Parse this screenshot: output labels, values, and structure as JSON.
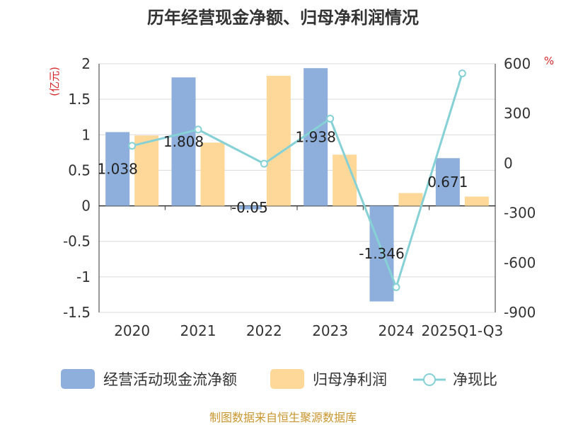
{
  "chart_data": {
    "type": "bar",
    "title": "历年经营现金净额、归母净利润情况",
    "categories": [
      "2020",
      "2021",
      "2022",
      "2023",
      "2024",
      "2025Q1-Q3"
    ],
    "series": [
      {
        "name": "经营活动现金流净额",
        "type": "bar",
        "axis": "left",
        "color": "#8eaedb",
        "values": [
          1.038,
          1.808,
          -0.05,
          1.938,
          -1.346,
          0.671
        ],
        "labels": [
          "1.038",
          "1.808",
          "-0.05",
          "1.938",
          "-1.346",
          "0.671"
        ]
      },
      {
        "name": "归母净利润",
        "type": "bar",
        "axis": "left",
        "color": "#fdd899",
        "values": [
          0.99,
          0.89,
          1.83,
          0.72,
          0.18,
          0.13
        ]
      },
      {
        "name": "净现比",
        "type": "line",
        "axis": "right",
        "color": "#86d1d6",
        "values": [
          105,
          203,
          -3,
          269,
          -748,
          542
        ]
      }
    ],
    "left_axis": {
      "unit": "(亿元)",
      "ylim": [
        -1.5,
        2
      ],
      "ticks": [
        2,
        1.5,
        1,
        0.5,
        0,
        -0.5,
        -1,
        -1.5
      ],
      "tick_labels": [
        "2",
        "1.5",
        "1",
        "0.5",
        "0",
        "-0.5",
        "-1",
        "-1.5"
      ]
    },
    "right_axis": {
      "unit": "%",
      "ylim": [
        -900,
        600
      ],
      "ticks": [
        600,
        300,
        0,
        -300,
        -600,
        -900
      ],
      "tick_labels": [
        "600",
        "300",
        "0",
        "-300",
        "-600",
        "-900"
      ]
    },
    "legend": [
      "经营活动现金流净额",
      "归母净利润",
      "净现比"
    ],
    "legend_position": "bottom",
    "grid": true
  },
  "source_text": "制图数据来自恒生聚源数据库"
}
